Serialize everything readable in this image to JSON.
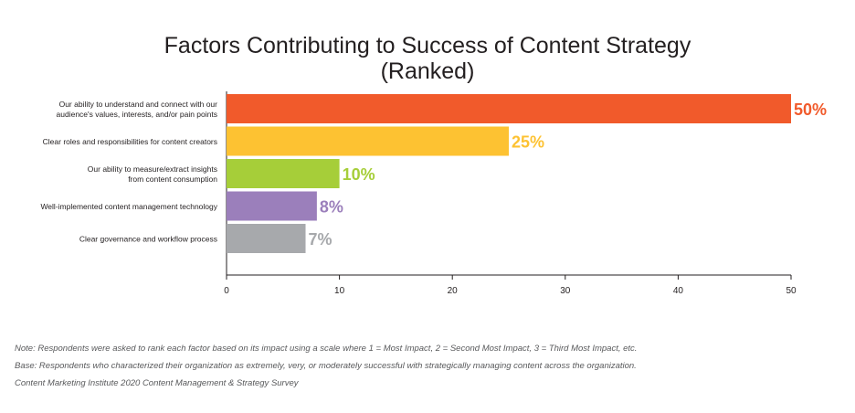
{
  "title_line1": "Factors Contributing to Success of Content Strategy",
  "title_line2": "(Ranked)",
  "chart_data": {
    "type": "bar",
    "orientation": "horizontal",
    "categories": [
      [
        "Our ability to understand and connect with our",
        "audience's values, interests, and/or pain points"
      ],
      [
        "Clear roles and responsibilities for content creators"
      ],
      [
        "Our ability to measure/extract insights",
        "from content consumption"
      ],
      [
        "Well-implemented content management technology"
      ],
      [
        "Clear governance and workflow process"
      ]
    ],
    "values": [
      50,
      25,
      10,
      8,
      7
    ],
    "value_labels": [
      "50%",
      "25%",
      "10%",
      "8%",
      "7%"
    ],
    "colors": [
      "#f15a2b",
      "#fdc232",
      "#a6ce39",
      "#9b7fbb",
      "#a7a9ac"
    ],
    "xlim": [
      0,
      50
    ],
    "xticks": [
      "0",
      "10",
      "20",
      "30",
      "40",
      "50"
    ],
    "grid": false
  },
  "notes": [
    "Note: Respondents were asked to rank each factor based on its impact using a scale where 1 = Most Impact, 2 = Second Most Impact, 3 = Third Most Impact, etc.",
    "Base: Respondents who characterized their organization as extremely, very, or moderately successful with strategically managing content across the organization.",
    "Content Marketing Institute 2020 Content Management & Strategy Survey"
  ]
}
